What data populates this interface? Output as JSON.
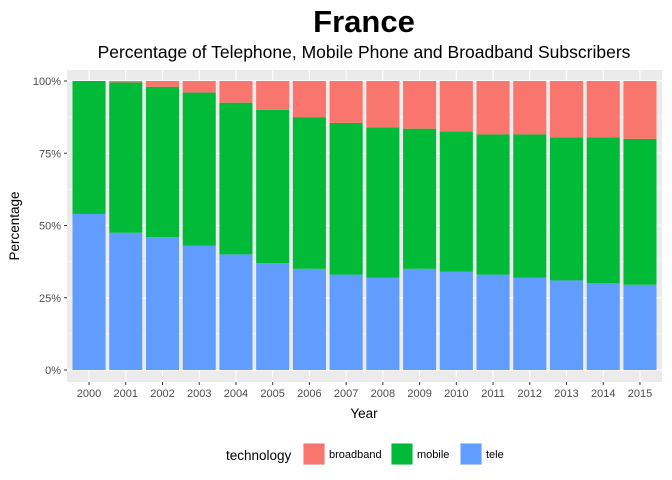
{
  "chart_data": {
    "type": "bar",
    "stacked": true,
    "title": "France",
    "subtitle": "Percentage of Telephone, Mobile Phone and Broadband Subscribers",
    "xlabel": "Year",
    "ylabel": "Percentage",
    "categories": [
      "2000",
      "2001",
      "2002",
      "2003",
      "2004",
      "2005",
      "2006",
      "2007",
      "2008",
      "2009",
      "2010",
      "2011",
      "2012",
      "2013",
      "2014",
      "2015"
    ],
    "ylim": [
      0,
      1
    ],
    "y_ticks": [
      0,
      0.25,
      0.5,
      0.75,
      1.0
    ],
    "y_tick_labels": [
      "0%",
      "25%",
      "50%",
      "75%",
      "100%"
    ],
    "grid": true,
    "legend_title": "technology",
    "legend_position": "bottom",
    "series": [
      {
        "name": "tele",
        "color": "#619CFF",
        "values": [
          0.54,
          0.475,
          0.46,
          0.43,
          0.4,
          0.37,
          0.35,
          0.33,
          0.32,
          0.35,
          0.34,
          0.33,
          0.32,
          0.31,
          0.3,
          0.295
        ]
      },
      {
        "name": "mobile",
        "color": "#00BA38",
        "values": [
          0.46,
          0.52,
          0.52,
          0.53,
          0.525,
          0.53,
          0.525,
          0.525,
          0.52,
          0.485,
          0.485,
          0.485,
          0.495,
          0.495,
          0.505,
          0.505
        ]
      },
      {
        "name": "broadband",
        "color": "#F8766D",
        "values": [
          0.0,
          0.005,
          0.02,
          0.04,
          0.075,
          0.1,
          0.125,
          0.145,
          0.16,
          0.165,
          0.175,
          0.185,
          0.185,
          0.195,
          0.195,
          0.2
        ]
      }
    ],
    "legend_order": [
      "broadband",
      "mobile",
      "tele"
    ]
  }
}
